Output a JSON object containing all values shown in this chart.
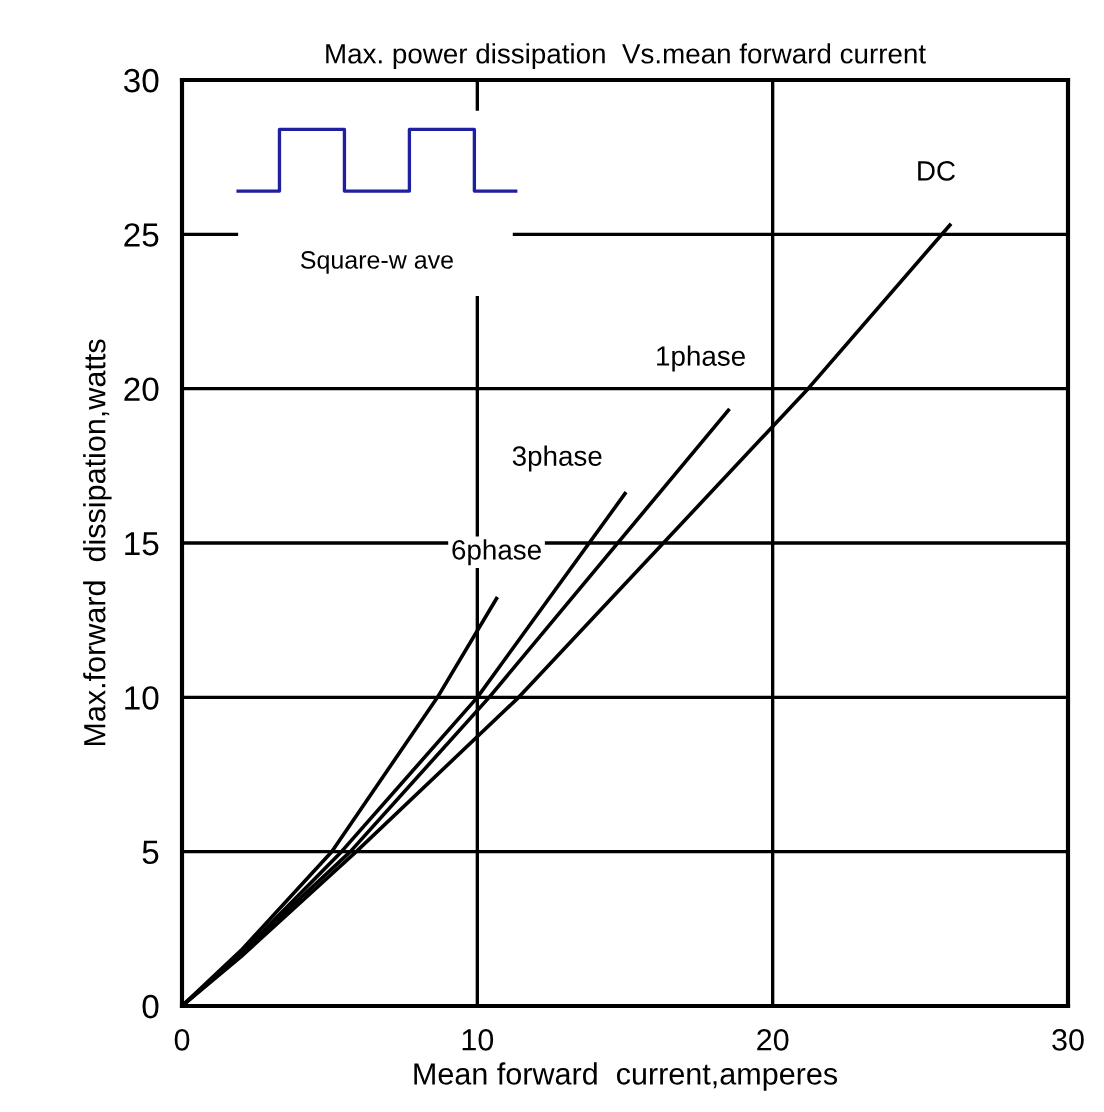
{
  "chart_data": {
    "type": "line",
    "title": "Max. power dissipation  Vs.mean forward current",
    "xlabel": "Mean forward  current,amperes",
    "ylabel": "Max.forward  dissipation,watts",
    "annotations": [
      "Square-w ave"
    ],
    "series": [
      {
        "name": "6phase",
        "color": "#000000",
        "x": [
          0,
          2,
          5.07,
          8.65,
          10.65
        ],
        "values": [
          0,
          1.8,
          5,
          10,
          13.2
        ]
      },
      {
        "name": "3phase",
        "color": "#000000",
        "x": [
          0,
          2,
          5.4,
          10,
          15
        ],
        "values": [
          0,
          1.7,
          5,
          10,
          16.6
        ]
      },
      {
        "name": "1phase",
        "color": "#000000",
        "x": [
          0,
          2,
          5.7,
          10.4,
          18.5
        ],
        "values": [
          0,
          1.7,
          5,
          10,
          19.3
        ]
      },
      {
        "name": "DC",
        "color": "#000000",
        "x": [
          0,
          2,
          5.9,
          11.4,
          21.2,
          26
        ],
        "values": [
          0,
          1.6,
          5,
          10,
          20,
          25.3
        ]
      }
    ],
    "xlim": [
      0,
      30
    ],
    "xticks": [
      0,
      10,
      20,
      30
    ],
    "ylim": [
      0,
      30
    ],
    "yticks": [
      0,
      5,
      10,
      15,
      20,
      25,
      30
    ],
    "grid": true,
    "legend": false,
    "marker": "none",
    "line_style": "solid"
  }
}
